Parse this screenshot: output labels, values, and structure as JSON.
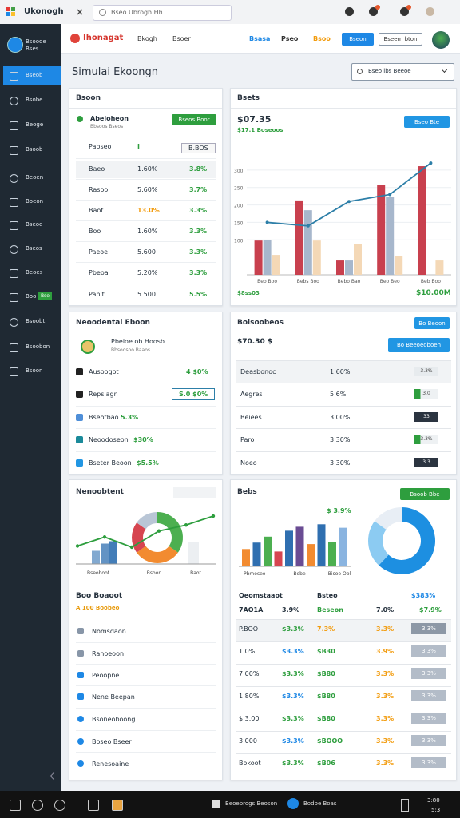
{
  "browser": {
    "tab": "Ukonogh",
    "search": "Bseo Ubrogh Hh"
  },
  "header": {
    "logo": "Ihonagat",
    "nav": [
      "Bkogh",
      "Bsoer"
    ],
    "links": [
      "Bsasa",
      "Pseo",
      "Bsoo"
    ],
    "button": "Bseon",
    "outline_button": "Bseem bton"
  },
  "sidebar": {
    "brand": "Bsoode Bses",
    "items": [
      "Bseob",
      "Bsobe",
      "Beoge",
      "Bsoob",
      "Beoen",
      "Boeon",
      "Bseoe",
      "Bseos",
      "Beoes",
      "Boo",
      "Bsoobt",
      "Bsoobon",
      "Bsoon"
    ],
    "badge": "Bse"
  },
  "page": {
    "title": "Simulai Ekoongn",
    "filter": "Bseo ibs Beeoe"
  },
  "summary": {
    "title": "Bsoon",
    "item": "Abeloheon",
    "item_sub": "Bbsoos Bseos",
    "button": "Bseos Boor",
    "rows": [
      [
        "Pabseo",
        "I",
        "B.BOS"
      ],
      [
        "Baeo",
        "1.60%",
        "3.8%"
      ],
      [
        "Rasoo",
        "5.60%",
        "3.7%"
      ],
      [
        "Baot",
        "13.0%",
        "3.3%"
      ],
      [
        "Boo",
        "1.60%",
        "3.3%"
      ],
      [
        "Paeoe",
        "5.600",
        "3.3%"
      ],
      [
        "Pbeoa",
        "5.20%",
        "3.3%"
      ],
      [
        "Pabit",
        "5.500",
        "5.5%"
      ]
    ]
  },
  "sales": {
    "title": "Bsets",
    "amount": "$07.35",
    "sub": "$17.1 Boseoos",
    "button": "Bseo Bte",
    "footer_left": "$8ss03",
    "footer_right": "$10.00M",
    "chart": {
      "type": "bar",
      "categories": [
        "Beo Boo",
        "Bebs Boo",
        "Bebo Bao",
        "Beo Beo",
        "Beb Boo"
      ],
      "series": [
        {
          "color": "#c8404e",
          "values": [
            98,
            213,
            41,
            258,
            311
          ]
        },
        {
          "color": "#a7b7cc",
          "values": [
            100,
            185,
            41,
            224,
            null
          ]
        },
        {
          "color": "#f4d8b6",
          "values": [
            57,
            98,
            87,
            53,
            41
          ]
        }
      ],
      "line": {
        "color": "#2d7fa8",
        "values": [
          150,
          140,
          210,
          230,
          320
        ]
      },
      "ylim": [
        0,
        350
      ],
      "yticks": [
        100,
        150,
        200,
        250,
        300
      ],
      "grid": true
    }
  },
  "dental": {
    "title": "Neoodental Eboon",
    "item": "Pbeioe ob Hoosb",
    "item_sub": "Bbsoosoo Baaos",
    "rows": [
      [
        "Ausoogot",
        "4 $0%"
      ],
      [
        "Repsiagn",
        "S.0 $0%"
      ],
      [
        "Bseotbao",
        "5.3%"
      ],
      [
        "Neoodoseon",
        "$30%"
      ],
      [
        "Bseter Beoon",
        "$5.5%"
      ]
    ]
  },
  "balance": {
    "title": "Bolsoobeos",
    "button": "Bo Beoon",
    "amount": "$70.30 $",
    "button2": "Bo Beeoeoboen",
    "rows": [
      [
        "Deasbonoc",
        "1.60%",
        "3.3%"
      ],
      [
        "Aegres",
        "5.6%",
        "3.0"
      ],
      [
        "Beiees",
        "3.00%",
        "33"
      ],
      [
        "Paro",
        "3.30%",
        "3.3%"
      ],
      [
        "Noeo",
        "3.30%",
        "3.3"
      ]
    ]
  },
  "trend": {
    "title": "Nenoobtent",
    "labels": [
      "Bseoboot",
      "Bsoon",
      "Baot"
    ],
    "line": [
      30,
      45,
      28,
      55,
      65,
      80
    ],
    "bars": [
      22,
      34,
      38
    ],
    "bar_color": "#2f6fb0",
    "ylim": [
      0,
      100
    ],
    "donut": [
      35,
      30,
      20,
      15
    ],
    "donut_colors": [
      "#4caf50",
      "#f28b30",
      "#d64550",
      "#b9c6d6"
    ],
    "sub_title": "Boo Boaoot",
    "sub_note": "A 100 Boobeo",
    "list": [
      "Nomsdaon",
      "Ranoeoon",
      "Peoopne",
      "Nene Beepan",
      "Bsoneoboong",
      "Boseo Bseer",
      "Renesoaine"
    ]
  },
  "rates": {
    "title": "Bebs",
    "button": "Bsoob Bbe",
    "value": "$ 3.9%",
    "labels": [
      "Pbmoseo",
      "Bobe",
      "Bisoe Obl"
    ],
    "bars": [
      35,
      48,
      60,
      30,
      72,
      80,
      45,
      85,
      50,
      78
    ],
    "bar_colors": [
      "#f28b30",
      "#2f6fb0",
      "#4caf50",
      "#d64550",
      "#2f6fb0",
      "#6a4c93",
      "#f28b30",
      "#2f6fb0",
      "#4caf50",
      "#8ab4e0"
    ],
    "ylim": [
      0,
      100
    ],
    "donut": [
      62,
      23,
      15
    ],
    "donut_colors": [
      "#1d8fe1",
      "#8ccbf2",
      "#e8eef5"
    ],
    "headers": [
      "Oeomstaaot",
      "Bsteo",
      "$383%"
    ],
    "subrow": [
      "7AO1A",
      "3.9%",
      "Beseon",
      "7.0%",
      "$7.9%"
    ],
    "rows": [
      [
        "P.BOO",
        "$3.3%",
        "7.3%",
        "3.3%",
        "3.3%"
      ],
      [
        "1.0%",
        "$3.3%",
        "$B30",
        "3.9%",
        "3.3%"
      ],
      [
        "7.00%",
        "$3.3%",
        "$B80",
        "3.3%",
        "3.3%"
      ],
      [
        "1.80%",
        "$3.3%",
        "$B80",
        "3.3%",
        "3.3%"
      ],
      [
        "$.3.00",
        "$3.3%",
        "$B80",
        "3.3%",
        "3.3%"
      ],
      [
        "3.000",
        "$3.3%",
        "$BOOO",
        "3.3%",
        "3.3%"
      ],
      [
        "Bokoot",
        "$3.3%",
        "$B06",
        "3.3%",
        "3.3%"
      ]
    ]
  },
  "taskbar": {
    "items": [
      "Beoebrogs Beoson",
      "Bodpe Boas"
    ],
    "time": "3:80",
    "date": "5:3"
  }
}
